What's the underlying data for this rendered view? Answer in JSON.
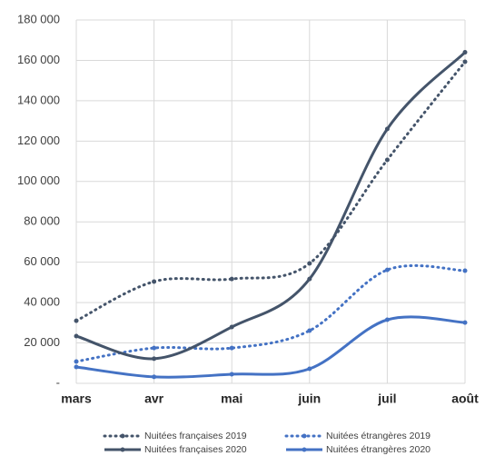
{
  "chart_data": {
    "type": "line",
    "categories": [
      "mars",
      "avr",
      "mai",
      "juin",
      "juil",
      "août"
    ],
    "series": [
      {
        "name": "Nuitées françaises 2019",
        "color": "#44546a",
        "style": "dotted",
        "values": [
          31000,
          50400,
          51700,
          59400,
          110700,
          159300
        ]
      },
      {
        "name": "Nuitées étrangères 2019",
        "color": "#4472c4",
        "style": "dotted",
        "values": [
          10800,
          17500,
          17500,
          26100,
          56200,
          55800
        ]
      },
      {
        "name": "Nuitées françaises 2020",
        "color": "#44546a",
        "style": "solid",
        "values": [
          23400,
          12200,
          27900,
          51700,
          126000,
          164000
        ]
      },
      {
        "name": "Nuitées étrangères 2020",
        "color": "#4472c4",
        "style": "solid",
        "values": [
          8100,
          3200,
          4500,
          7200,
          31500,
          30100
        ]
      }
    ],
    "ylim": [
      0,
      180000
    ],
    "yticks": [
      {
        "value": 0,
        "label": "-"
      },
      {
        "value": 20000,
        "label": "20 000"
      },
      {
        "value": 40000,
        "label": "40 000"
      },
      {
        "value": 60000,
        "label": "60 000"
      },
      {
        "value": 80000,
        "label": "80 000"
      },
      {
        "value": 100000,
        "label": "100 000"
      },
      {
        "value": 120000,
        "label": "120 000"
      },
      {
        "value": 140000,
        "label": "140 000"
      },
      {
        "value": 160000,
        "label": "160 000"
      },
      {
        "value": 180000,
        "label": "180 000"
      }
    ],
    "grid": true,
    "smooth": true,
    "legend": "bottom"
  }
}
